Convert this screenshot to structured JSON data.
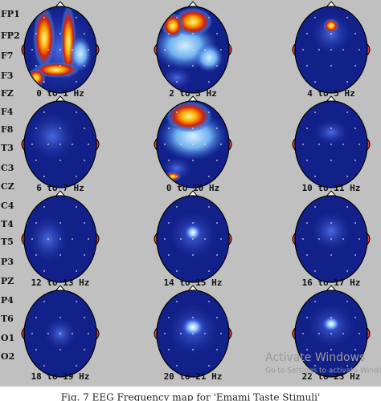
{
  "channels": [
    "FP1",
    "FP2",
    "F7",
    "F3",
    "FZ",
    "F4",
    "F8",
    "T3",
    "C3",
    "CZ",
    "C4",
    "T4",
    "T5",
    "P3",
    "PZ",
    "P4",
    "T6",
    "O1",
    "O2"
  ],
  "panels": [
    {
      "label": "0 to 1 Hz"
    },
    {
      "label": "2 to 3 Hz"
    },
    {
      "label": "4 to 5 Hz"
    },
    {
      "label": "6 to 7 Hz"
    },
    {
      "label": "0 to 10 Hz"
    },
    {
      "label": "10 to 11 Hz"
    },
    {
      "label": "12 to 13 Hz"
    },
    {
      "label": "14 to 15 Hz"
    },
    {
      "label": "16 to 17 Hz"
    },
    {
      "label": "18 to 19 Hz"
    },
    {
      "label": "20 to 21 Hz"
    },
    {
      "label": "22 to 23 Hz"
    }
  ],
  "watermark": {
    "title": "Activate Windows",
    "subtitle": "Go to Settings to activate Windows."
  },
  "caption": "Fig. 7 EEG Frequency map for 'Emami Taste Stimuli'"
}
